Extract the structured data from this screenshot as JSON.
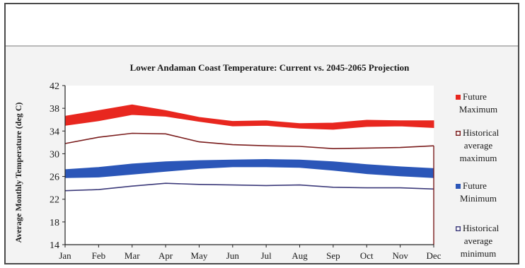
{
  "chart_data": {
    "type": "area",
    "title": "Lower Andaman Coast Temperature: Current vs. 2045-2065 Projection",
    "ylabel": "Average Monthly Temperature (deg C)",
    "xlabel": "",
    "categories": [
      "Jan",
      "Feb",
      "Mar",
      "Apr",
      "May",
      "Jun",
      "Jul",
      "Aug",
      "Sep",
      "Oct",
      "Nov",
      "Dec"
    ],
    "ylim": [
      14,
      42
    ],
    "yticks": [
      14,
      18,
      22,
      26,
      30,
      34,
      38,
      42
    ],
    "grid": false,
    "legend_position": "right",
    "series": [
      {
        "name": "Future Maximum",
        "kind": "band",
        "color": "#e8271f",
        "low": [
          35.0,
          35.8,
          36.9,
          36.6,
          35.7,
          34.9,
          35.0,
          34.5,
          34.3,
          34.8,
          34.9,
          34.6
        ],
        "high": [
          36.6,
          37.6,
          38.6,
          37.6,
          36.4,
          35.7,
          35.8,
          35.3,
          35.4,
          35.9,
          35.8,
          35.8
        ]
      },
      {
        "name": "Historical average maximum",
        "kind": "line",
        "color": "#7a1c1c",
        "values": [
          31.8,
          32.9,
          33.6,
          33.5,
          32.1,
          31.6,
          31.4,
          31.3,
          30.9,
          31.0,
          31.1,
          31.4
        ]
      },
      {
        "name": "Future Minimum",
        "kind": "band",
        "color": "#2b56b8",
        "low": [
          25.8,
          25.9,
          26.4,
          26.9,
          27.4,
          27.7,
          27.7,
          27.6,
          27.1,
          26.5,
          26.1,
          25.8
        ],
        "high": [
          27.2,
          27.6,
          28.2,
          28.6,
          28.8,
          28.9,
          29.0,
          28.9,
          28.6,
          28.1,
          27.7,
          27.4
        ]
      },
      {
        "name": "Historical average minimum",
        "kind": "line",
        "color": "#3c3a7a",
        "values": [
          23.5,
          23.7,
          24.3,
          24.8,
          24.6,
          24.5,
          24.4,
          24.5,
          24.1,
          24.0,
          24.0,
          23.8
        ]
      }
    ]
  },
  "legend": [
    {
      "label_lines": [
        "Future",
        "Maximum"
      ],
      "color": "#e8271f",
      "marker": "filled"
    },
    {
      "label_lines": [
        "Historical",
        "average",
        "maximum"
      ],
      "color": "#7a1c1c",
      "marker": "hollow"
    },
    {
      "label_lines": [
        "Future",
        "Minimum"
      ],
      "color": "#2b56b8",
      "marker": "filled"
    },
    {
      "label_lines": [
        "Historical",
        "average",
        "minimum"
      ],
      "color": "#3c3a7a",
      "marker": "hollow"
    }
  ]
}
